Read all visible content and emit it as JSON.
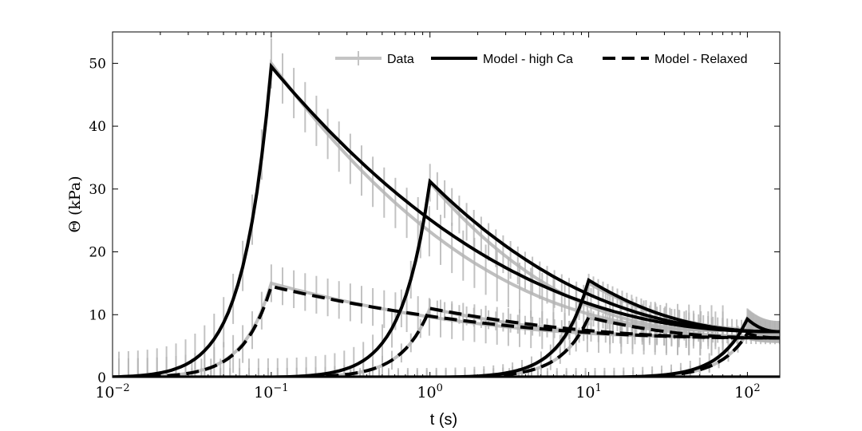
{
  "chart_data": {
    "type": "line",
    "xscale": "log",
    "xlim": [
      0.01,
      160
    ],
    "ylim": [
      0,
      55
    ],
    "xlabel": "t (s)",
    "ylabel": "Θ (kPa)",
    "x_ticks": [
      0.01,
      0.1,
      1,
      10,
      100
    ],
    "x_tick_labels": [
      {
        "base": "10",
        "exp": "−2"
      },
      {
        "base": "10",
        "exp": "−1"
      },
      {
        "base": "10",
        "exp": "0"
      },
      {
        "base": "10",
        "exp": "1"
      },
      {
        "base": "10",
        "exp": "2"
      }
    ],
    "y_ticks": [
      0,
      10,
      20,
      30,
      40,
      50
    ],
    "y_tick_labels": [
      "0",
      "10",
      "20",
      "30",
      "40",
      "50"
    ],
    "legend": {
      "placement": "top-right",
      "entries": [
        "Data",
        "Model - high Ca",
        "Model - Relaxed"
      ]
    },
    "colors": {
      "data": "#b4b4b4",
      "model": "#000000"
    },
    "series": [
      {
        "name": "Model - high Ca",
        "style": "solid",
        "curves": [
          {
            "peak_time": 0.1,
            "peak": 49.5,
            "end_time": 160,
            "end_value": 7.3
          },
          {
            "peak_time": 1,
            "peak": 31.2,
            "end_time": 160,
            "end_value": 7.3
          },
          {
            "peak_time": 10,
            "peak": 15.5,
            "end_time": 160,
            "end_value": 7.3
          },
          {
            "peak_time": 100,
            "peak": 9.3,
            "end_time": 160,
            "end_value": 7.3
          }
        ]
      },
      {
        "name": "Model - Relaxed",
        "style": "dashed",
        "curves": [
          {
            "peak_time": 0.1,
            "peak": 14.5,
            "end_time": 160,
            "end_value": 6.3
          },
          {
            "peak_time": 1,
            "peak": 11.0,
            "end_time": 160,
            "end_value": 6.3
          },
          {
            "peak_time": 10,
            "peak": 9.6,
            "end_time": 160,
            "end_value": 6.3
          },
          {
            "peak_time": 100,
            "peak": 7.0,
            "end_time": 160,
            "end_value": 6.3
          }
        ]
      },
      {
        "name": "Data",
        "style": "errorbar",
        "curves": [
          {
            "peak_time": 0.1,
            "peak": 50,
            "end_time": 70,
            "end_value": 7.5,
            "err": 4
          },
          {
            "peak_time": 1,
            "peak": 31,
            "end_time": 70,
            "end_value": 7.5,
            "err": 3
          },
          {
            "peak_time": 10,
            "peak": 15,
            "end_time": 160,
            "end_value": 7.5,
            "err": 1.5
          },
          {
            "peak_time": 100,
            "peak": 9.5,
            "end_time": 160,
            "end_value": 7.5,
            "err": 1.5
          },
          {
            "peak_time": 0.1,
            "peak": 15,
            "end_time": 70,
            "end_value": 6.5,
            "err": 3
          },
          {
            "peak_time": 1,
            "peak": 11,
            "end_time": 70,
            "end_value": 6.5,
            "err": 1.5
          },
          {
            "peak_time": 10,
            "peak": 9.5,
            "end_time": 160,
            "end_value": 6.5,
            "err": 1.2
          },
          {
            "peak_time": 100,
            "peak": 7,
            "end_time": 160,
            "end_value": 6.5,
            "err": 1
          }
        ]
      }
    ]
  }
}
